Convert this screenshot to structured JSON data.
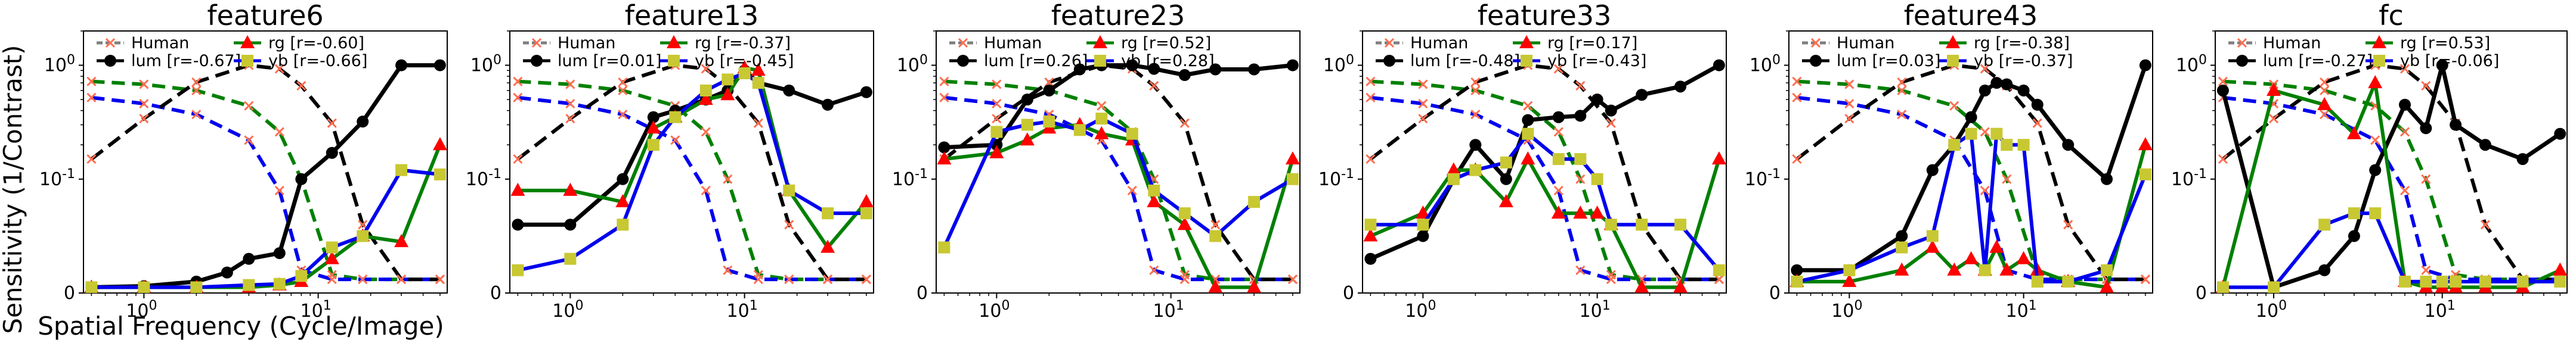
{
  "figure": {
    "ylabel": "Sensitivity (1/Contrast)",
    "xlabel": "Spatial Frequency (Cycle/Image)"
  },
  "colors": {
    "Human": "#7f7f7f",
    "lum": "#000000",
    "rg": "#008000",
    "yb": "#0000ee",
    "rg_marker": "#ff0000",
    "yb_marker": "#c8c832",
    "human_marker": "#ff6e50"
  },
  "reference_curves": {
    "x": [
      0.5,
      1,
      2,
      4,
      6,
      8,
      12,
      18,
      30,
      50
    ],
    "human": [
      0.15,
      0.34,
      0.71,
      1.0,
      0.93,
      0.66,
      0.31,
      0.06,
      0.012,
      0.012
    ],
    "rg": [
      0.72,
      0.68,
      0.6,
      0.44,
      0.26,
      0.1,
      0.016,
      0.012,
      0.012,
      0.012
    ],
    "yb": [
      0.52,
      0.46,
      0.37,
      0.22,
      0.09,
      0.02,
      0.012,
      0.012,
      0.012,
      0.012
    ]
  },
  "chart_data": [
    {
      "type": "line",
      "title": "feature6",
      "xscale": "log",
      "yscale": "symlog",
      "legend": [
        "Human",
        "lum [r=-0.67]",
        "rg    [r=-0.60]",
        "yb    [r=-0.66]"
      ],
      "xticks": [
        "10^0",
        "10^1"
      ],
      "yticks": [
        "0",
        "10^-1",
        "10^0"
      ],
      "series": [
        {
          "name": "Human",
          "x": [
            0.5,
            1,
            2,
            4,
            6,
            8,
            12,
            18,
            30,
            50
          ],
          "y": [
            0.15,
            0.34,
            0.71,
            1.0,
            0.93,
            0.66,
            0.31,
            0.06,
            0.012,
            0.012
          ]
        },
        {
          "name": "lum",
          "x": [
            0.5,
            1,
            2,
            3,
            4,
            6,
            8,
            12,
            18,
            30,
            50
          ],
          "y": [
            0.005,
            0.006,
            0.01,
            0.018,
            0.03,
            0.035,
            0.1,
            0.17,
            0.32,
            1.0,
            1.0
          ]
        },
        {
          "name": "rg",
          "x": [
            0.5,
            1,
            2,
            4,
            6,
            8,
            12,
            18,
            30,
            50
          ],
          "y": [
            0.005,
            0.005,
            0.005,
            0.005,
            0.007,
            0.01,
            0.03,
            0.05,
            0.045,
            0.2
          ]
        },
        {
          "name": "yb",
          "x": [
            0.5,
            1,
            2,
            4,
            6,
            8,
            12,
            18,
            30,
            50
          ],
          "y": [
            0.005,
            0.005,
            0.005,
            0.007,
            0.008,
            0.015,
            0.04,
            0.05,
            0.12,
            0.11
          ]
        }
      ]
    },
    {
      "type": "line",
      "title": "feature13",
      "xscale": "log",
      "yscale": "symlog",
      "legend": [
        "Human",
        "lum [r=0.01]",
        "rg    [r=-0.37]",
        "yb    [r=-0.45]"
      ],
      "xticks": [
        "10^0",
        "10^1"
      ],
      "yticks": [
        "0",
        "10^-1",
        "10^0"
      ],
      "series": [
        {
          "name": "Human",
          "x": [
            0.5,
            1,
            2,
            4,
            6,
            8,
            12,
            18,
            30,
            50
          ],
          "y": [
            0.15,
            0.34,
            0.71,
            1.0,
            0.93,
            0.66,
            0.31,
            0.06,
            0.012,
            0.012
          ]
        },
        {
          "name": "lum",
          "x": [
            0.5,
            1,
            2,
            3,
            4,
            6,
            8,
            10,
            12,
            18,
            30,
            50
          ],
          "y": [
            0.06,
            0.06,
            0.1,
            0.35,
            0.4,
            0.5,
            0.6,
            0.9,
            0.7,
            0.6,
            0.45,
            0.58
          ]
        },
        {
          "name": "rg",
          "x": [
            0.5,
            1,
            2,
            3,
            4,
            6,
            8,
            10,
            12,
            18,
            30,
            50
          ],
          "y": [
            0.09,
            0.09,
            0.08,
            0.28,
            0.35,
            0.5,
            0.55,
            0.95,
            0.9,
            0.09,
            0.04,
            0.08
          ]
        },
        {
          "name": "yb",
          "x": [
            0.5,
            1,
            2,
            3,
            4,
            6,
            8,
            10,
            12,
            18,
            30,
            50
          ],
          "y": [
            0.02,
            0.03,
            0.06,
            0.2,
            0.35,
            0.6,
            0.75,
            0.85,
            0.7,
            0.09,
            0.07,
            0.07
          ]
        }
      ]
    },
    {
      "type": "line",
      "title": "feature23",
      "xscale": "log",
      "yscale": "symlog",
      "legend": [
        "Human",
        "lum [r=0.26]",
        "rg    [r=0.52]",
        "yb    [r=0.28]"
      ],
      "xticks": [
        "10^0",
        "10^1"
      ],
      "yticks": [
        "0",
        "10^-1",
        "10^0"
      ],
      "series": [
        {
          "name": "Human",
          "x": [
            0.5,
            1,
            2,
            4,
            6,
            8,
            12,
            18,
            30,
            50
          ],
          "y": [
            0.15,
            0.34,
            0.71,
            1.0,
            0.93,
            0.66,
            0.31,
            0.06,
            0.012,
            0.012
          ]
        },
        {
          "name": "lum",
          "x": [
            0.5,
            1,
            1.5,
            2,
            3,
            4,
            6,
            8,
            12,
            18,
            30,
            50
          ],
          "y": [
            0.19,
            0.2,
            0.5,
            0.6,
            0.92,
            1.0,
            1.0,
            0.93,
            0.82,
            0.92,
            0.92,
            1.0
          ]
        },
        {
          "name": "rg",
          "x": [
            0.5,
            1,
            1.5,
            2,
            3,
            4,
            6,
            8,
            12,
            18,
            30,
            50
          ],
          "y": [
            0.15,
            0.17,
            0.22,
            0.28,
            0.3,
            0.25,
            0.22,
            0.08,
            0.06,
            0.005,
            0.005,
            0.15
          ]
        },
        {
          "name": "yb",
          "x": [
            0.5,
            1,
            1.5,
            2,
            3,
            4,
            6,
            8,
            12,
            18,
            30,
            50
          ],
          "y": [
            0.04,
            0.26,
            0.3,
            0.32,
            0.27,
            0.34,
            0.25,
            0.09,
            0.07,
            0.05,
            0.08,
            0.1
          ]
        }
      ]
    },
    {
      "type": "line",
      "title": "feature33",
      "xscale": "log",
      "yscale": "symlog",
      "legend": [
        "Human",
        "lum [r=-0.48]",
        "rg    [r=0.17]",
        "yb    [r=-0.43]"
      ],
      "xticks": [
        "10^0",
        "10^1"
      ],
      "yticks": [
        "0",
        "10^-1",
        "10^0"
      ],
      "series": [
        {
          "name": "Human",
          "x": [
            0.5,
            1,
            2,
            4,
            6,
            8,
            12,
            18,
            30,
            50
          ],
          "y": [
            0.15,
            0.34,
            0.71,
            1.0,
            0.93,
            0.66,
            0.31,
            0.06,
            0.012,
            0.012
          ]
        },
        {
          "name": "lum",
          "x": [
            0.5,
            1,
            1.5,
            2,
            3,
            4,
            6,
            8,
            10,
            12,
            18,
            30,
            50
          ],
          "y": [
            0.03,
            0.05,
            0.1,
            0.2,
            0.1,
            0.33,
            0.35,
            0.36,
            0.5,
            0.4,
            0.55,
            0.65,
            1.0
          ]
        },
        {
          "name": "rg",
          "x": [
            0.5,
            1,
            1.5,
            2,
            3,
            4,
            6,
            8,
            10,
            12,
            18,
            30,
            50
          ],
          "y": [
            0.05,
            0.07,
            0.12,
            0.12,
            0.08,
            0.15,
            0.07,
            0.07,
            0.07,
            0.06,
            0.005,
            0.005,
            0.15
          ]
        },
        {
          "name": "yb",
          "x": [
            0.5,
            1,
            1.5,
            2,
            3,
            4,
            6,
            8,
            10,
            12,
            18,
            30,
            50
          ],
          "y": [
            0.06,
            0.06,
            0.1,
            0.12,
            0.14,
            0.25,
            0.15,
            0.15,
            0.1,
            0.06,
            0.06,
            0.06,
            0.02
          ]
        }
      ]
    },
    {
      "type": "line",
      "title": "feature43",
      "xscale": "log",
      "yscale": "symlog",
      "legend": [
        "Human",
        "lum [r=0.03]",
        "rg    [r=-0.38]",
        "yb    [r=-0.37]"
      ],
      "xticks": [
        "10^0",
        "10^1"
      ],
      "yticks": [
        "0",
        "10^-1",
        "10^0"
      ],
      "series": [
        {
          "name": "Human",
          "x": [
            0.5,
            1,
            2,
            4,
            6,
            8,
            12,
            18,
            30,
            50
          ],
          "y": [
            0.15,
            0.34,
            0.71,
            1.0,
            0.93,
            0.66,
            0.31,
            0.06,
            0.012,
            0.012
          ]
        },
        {
          "name": "lum",
          "x": [
            0.5,
            1,
            2,
            3,
            4,
            5,
            6,
            7,
            8,
            10,
            12,
            18,
            30,
            50
          ],
          "y": [
            0.02,
            0.02,
            0.05,
            0.12,
            0.2,
            0.35,
            0.6,
            0.7,
            0.68,
            0.6,
            0.45,
            0.2,
            0.1,
            1.0
          ]
        },
        {
          "name": "rg",
          "x": [
            0.5,
            1,
            2,
            3,
            4,
            5,
            6,
            7,
            8,
            10,
            12,
            18,
            30,
            50
          ],
          "y": [
            0.01,
            0.01,
            0.02,
            0.04,
            0.02,
            0.03,
            0.02,
            0.04,
            0.02,
            0.03,
            0.02,
            0.01,
            0.005,
            0.2
          ]
        },
        {
          "name": "yb",
          "x": [
            0.5,
            1,
            2,
            3,
            4,
            5,
            6,
            7,
            8,
            10,
            12,
            18,
            30,
            50
          ],
          "y": [
            0.01,
            0.02,
            0.04,
            0.05,
            0.2,
            0.25,
            0.02,
            0.25,
            0.2,
            0.2,
            0.01,
            0.01,
            0.02,
            0.11
          ]
        }
      ]
    },
    {
      "type": "line",
      "title": "fc",
      "xscale": "log",
      "yscale": "symlog",
      "legend": [
        "Human",
        "lum [r=-0.27]",
        "rg    [r=0.53]",
        "yb    [r=-0.06]"
      ],
      "xticks": [
        "10^0",
        "10^1"
      ],
      "yticks": [
        "0",
        "10^-1",
        "10^0"
      ],
      "series": [
        {
          "name": "Human",
          "x": [
            0.5,
            1,
            2,
            4,
            6,
            8,
            12,
            18,
            30,
            50
          ],
          "y": [
            0.15,
            0.34,
            0.71,
            1.0,
            0.93,
            0.66,
            0.31,
            0.06,
            0.012,
            0.012
          ]
        },
        {
          "name": "lum",
          "x": [
            0.5,
            1,
            2,
            3,
            4,
            6,
            8,
            10,
            12,
            18,
            30,
            50
          ],
          "y": [
            0.6,
            0.005,
            0.02,
            0.05,
            0.12,
            0.45,
            0.28,
            1.0,
            0.3,
            0.2,
            0.15,
            0.25
          ]
        },
        {
          "name": "rg",
          "x": [
            0.5,
            1,
            2,
            3,
            4,
            6,
            8,
            10,
            12,
            18,
            30,
            50
          ],
          "y": [
            0.005,
            0.6,
            0.45,
            0.25,
            0.7,
            0.01,
            0.005,
            0.005,
            0.005,
            0.005,
            0.005,
            0.02
          ]
        },
        {
          "name": "yb",
          "x": [
            0.5,
            1,
            2,
            3,
            4,
            6,
            8,
            10,
            12,
            18,
            30,
            50
          ],
          "y": [
            0.005,
            0.005,
            0.06,
            0.07,
            0.07,
            0.01,
            0.01,
            0.01,
            0.01,
            0.01,
            0.01,
            0.01
          ]
        }
      ]
    }
  ]
}
